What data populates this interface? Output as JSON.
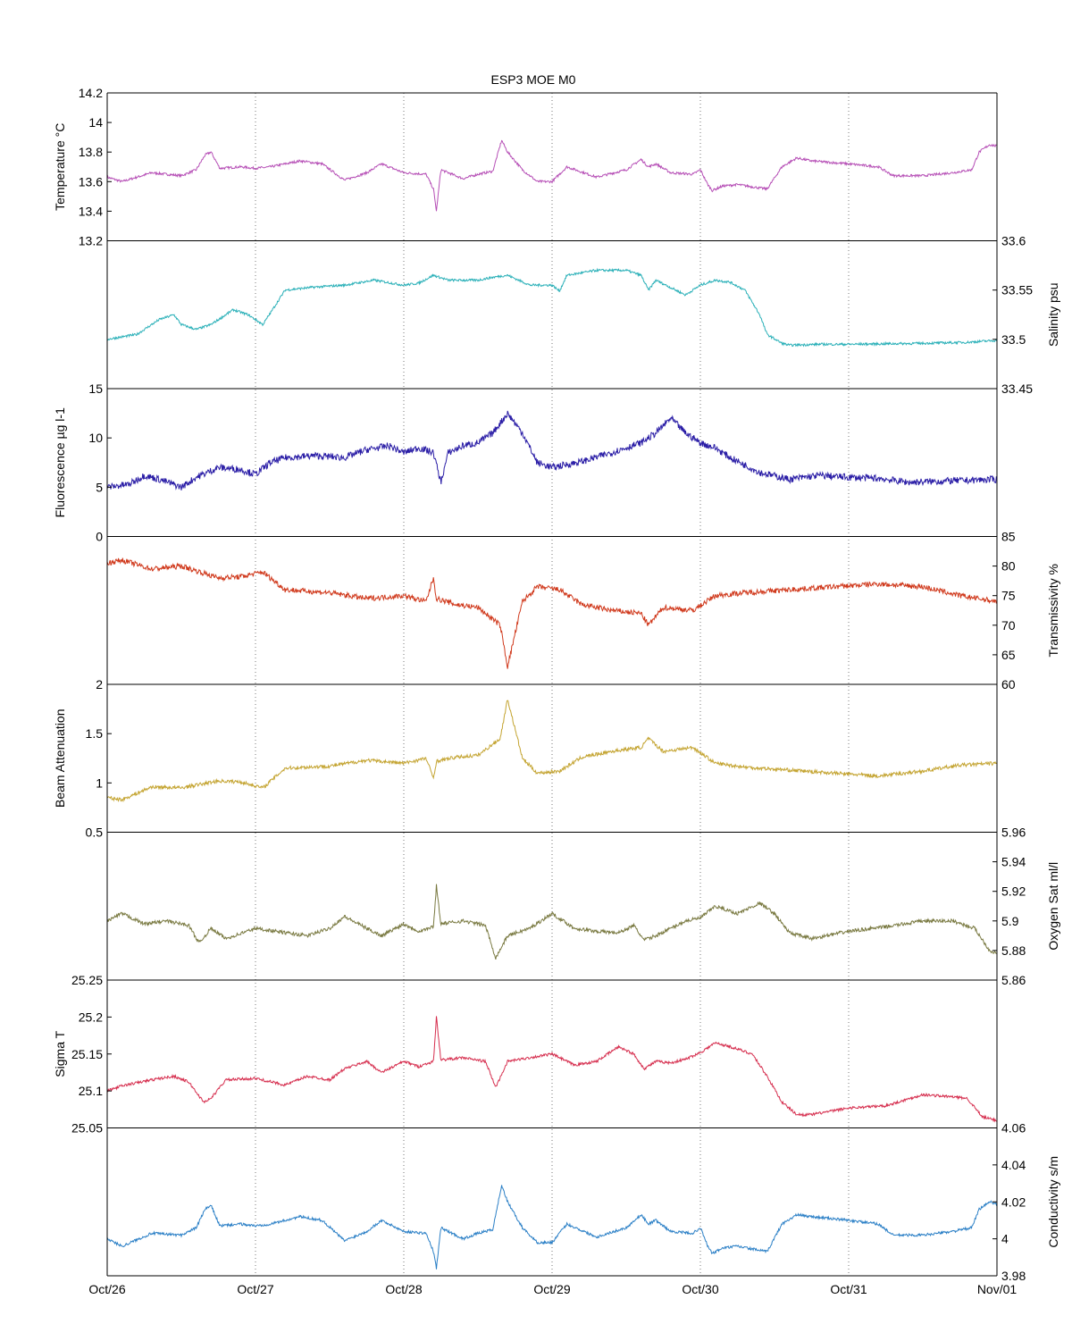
{
  "chart_data": {
    "type": "line",
    "title": "ESP3 MOE   M0",
    "x_ticks": [
      "Oct/26",
      "Oct/27",
      "Oct/28",
      "Oct/29",
      "Oct/30",
      "Oct/31",
      "Nov/01"
    ],
    "xlim_days": [
      0,
      6
    ],
    "grid": "vertical dotted at day ticks",
    "panels": [
      {
        "name": "temperature",
        "ylabel": "Temperature °C",
        "axis_side": "left",
        "color": "#b64fb6",
        "ylim": [
          13.2,
          14.2
        ],
        "yticks": [
          "13.2",
          "13.4",
          "13.6",
          "13.8",
          "14",
          "14.2"
        ],
        "ytick_values": [
          13.2,
          13.4,
          13.6,
          13.8,
          14.0,
          14.2
        ],
        "noise": 0.008,
        "x": [
          0,
          0.1,
          0.3,
          0.5,
          0.6,
          0.66,
          0.7,
          0.76,
          0.9,
          1.0,
          1.1,
          1.3,
          1.45,
          1.6,
          1.75,
          1.85,
          2.0,
          2.15,
          2.2,
          2.22,
          2.25,
          2.4,
          2.5,
          2.6,
          2.66,
          2.7,
          2.8,
          2.9,
          3.0,
          3.1,
          3.3,
          3.5,
          3.6,
          3.65,
          3.7,
          3.8,
          3.95,
          4.0,
          4.05,
          4.08,
          4.15,
          4.25,
          4.45,
          4.55,
          4.65,
          4.75,
          5.0,
          5.2,
          5.3,
          5.5,
          5.7,
          5.83,
          5.88,
          5.95,
          6.0
        ],
        "y": [
          13.63,
          13.6,
          13.66,
          13.64,
          13.68,
          13.78,
          13.8,
          13.69,
          13.7,
          13.69,
          13.7,
          13.74,
          13.72,
          13.61,
          13.66,
          13.72,
          13.66,
          13.65,
          13.55,
          13.4,
          13.68,
          13.62,
          13.65,
          13.67,
          13.88,
          13.8,
          13.68,
          13.6,
          13.6,
          13.7,
          13.63,
          13.68,
          13.75,
          13.7,
          13.72,
          13.66,
          13.65,
          13.68,
          13.58,
          13.54,
          13.57,
          13.58,
          13.55,
          13.7,
          13.76,
          13.74,
          13.72,
          13.7,
          13.64,
          13.64,
          13.66,
          13.68,
          13.8,
          13.85,
          13.84
        ]
      },
      {
        "name": "salinity",
        "ylabel": "Salinity psu",
        "axis_side": "right",
        "color": "#2ab0b8",
        "ylim": [
          33.45,
          33.6
        ],
        "yticks": [
          "33.45",
          "33.5",
          "33.55",
          "33.6"
        ],
        "ytick_values": [
          33.45,
          33.5,
          33.55,
          33.6
        ],
        "noise": 0.0012,
        "x": [
          0,
          0.2,
          0.35,
          0.45,
          0.5,
          0.6,
          0.7,
          0.85,
          0.95,
          1.05,
          1.2,
          1.4,
          1.6,
          1.8,
          2.0,
          2.1,
          2.2,
          2.3,
          2.5,
          2.6,
          2.7,
          2.85,
          3.0,
          3.05,
          3.1,
          3.3,
          3.5,
          3.6,
          3.65,
          3.7,
          3.9,
          4.0,
          4.1,
          4.2,
          4.3,
          4.4,
          4.45,
          4.55,
          4.6,
          4.8,
          5.0,
          5.5,
          5.8,
          6.0
        ],
        "y": [
          33.5,
          33.505,
          33.52,
          33.525,
          33.515,
          33.51,
          33.515,
          33.53,
          33.525,
          33.515,
          33.55,
          33.553,
          33.555,
          33.56,
          33.555,
          33.557,
          33.565,
          33.56,
          33.56,
          33.563,
          33.565,
          33.555,
          33.555,
          33.549,
          33.565,
          33.57,
          33.57,
          33.565,
          33.55,
          33.56,
          33.545,
          33.555,
          33.56,
          33.558,
          33.55,
          33.525,
          33.505,
          33.496,
          33.494,
          33.495,
          33.495,
          33.496,
          33.497,
          33.499
        ]
      },
      {
        "name": "fluorescence",
        "ylabel": "Fluorescence µg l-1",
        "axis_side": "left",
        "color": "#2a1da6",
        "ylim": [
          0,
          15
        ],
        "yticks": [
          "0",
          "5",
          "10",
          "15"
        ],
        "ytick_values": [
          0,
          5,
          10,
          15
        ],
        "noise": 0.35,
        "x": [
          0,
          0.15,
          0.25,
          0.35,
          0.5,
          0.6,
          0.75,
          0.9,
          1.0,
          1.1,
          1.2,
          1.4,
          1.6,
          1.75,
          1.9,
          2.0,
          2.1,
          2.2,
          2.25,
          2.3,
          2.4,
          2.5,
          2.6,
          2.7,
          2.8,
          2.9,
          3.0,
          3.2,
          3.4,
          3.6,
          3.7,
          3.8,
          3.9,
          4.0,
          4.1,
          4.2,
          4.4,
          4.6,
          4.8,
          5.0,
          5.2,
          5.4,
          5.6,
          5.8,
          6.0
        ],
        "y": [
          5.0,
          5.3,
          6.2,
          5.8,
          5.0,
          6.0,
          7.0,
          6.8,
          6.3,
          7.5,
          8.0,
          8.2,
          8.0,
          8.8,
          9.2,
          8.5,
          9.0,
          8.5,
          5.5,
          8.5,
          9.2,
          9.5,
          10.5,
          12.5,
          10.5,
          7.5,
          7.0,
          7.6,
          8.5,
          9.5,
          10.5,
          12.0,
          10.5,
          9.5,
          9.0,
          8.0,
          6.5,
          5.8,
          6.2,
          6.0,
          5.9,
          5.5,
          5.6,
          5.7,
          5.8
        ]
      },
      {
        "name": "transmissivity",
        "ylabel": "Transmissivity %",
        "axis_side": "right",
        "color": "#d0391c",
        "ylim": [
          60,
          85
        ],
        "yticks": [
          "60",
          "65",
          "70",
          "75",
          "80",
          "85"
        ],
        "ytick_values": [
          60,
          65,
          70,
          75,
          80,
          85
        ],
        "noise": 0.45,
        "x": [
          0,
          0.1,
          0.3,
          0.5,
          0.75,
          0.9,
          1.05,
          1.2,
          1.5,
          1.75,
          2.0,
          2.15,
          2.2,
          2.22,
          2.35,
          2.5,
          2.65,
          2.7,
          2.8,
          2.9,
          3.05,
          3.2,
          3.4,
          3.6,
          3.65,
          3.75,
          3.95,
          4.1,
          4.3,
          4.6,
          4.9,
          5.2,
          5.5,
          5.75,
          6.0
        ],
        "y": [
          80.5,
          81.0,
          79.5,
          80.0,
          78.0,
          78.2,
          79.0,
          76.0,
          75.5,
          74.5,
          75.0,
          74.0,
          78.0,
          74.5,
          73.5,
          73.0,
          70.0,
          63.0,
          74.0,
          76.5,
          76.0,
          73.5,
          72.5,
          72.0,
          70.0,
          73.0,
          72.5,
          75.0,
          75.5,
          76.0,
          76.5,
          77.0,
          76.5,
          75.0,
          74.0
        ]
      },
      {
        "name": "beam_attenuation",
        "ylabel": "Beam Attenuation",
        "axis_side": "left",
        "color": "#c4a431",
        "ylim": [
          0.5,
          2
        ],
        "yticks": [
          "0.5",
          "1",
          "1.5",
          "2"
        ],
        "ytick_values": [
          0.5,
          1.0,
          1.5,
          2.0
        ],
        "noise": 0.018,
        "x": [
          0,
          0.1,
          0.3,
          0.5,
          0.75,
          0.9,
          1.05,
          1.2,
          1.5,
          1.75,
          2.0,
          2.15,
          2.2,
          2.22,
          2.35,
          2.5,
          2.65,
          2.7,
          2.8,
          2.9,
          3.05,
          3.2,
          3.4,
          3.6,
          3.65,
          3.75,
          3.95,
          4.1,
          4.3,
          4.6,
          4.9,
          5.2,
          5.5,
          5.75,
          6.0
        ],
        "y": [
          0.85,
          0.83,
          0.96,
          0.95,
          1.02,
          1.01,
          0.95,
          1.15,
          1.17,
          1.23,
          1.2,
          1.25,
          1.05,
          1.22,
          1.26,
          1.28,
          1.45,
          1.85,
          1.25,
          1.1,
          1.12,
          1.26,
          1.32,
          1.36,
          1.45,
          1.32,
          1.36,
          1.2,
          1.16,
          1.13,
          1.1,
          1.07,
          1.12,
          1.18,
          1.2
        ]
      },
      {
        "name": "oxygen_sat",
        "ylabel": "Oxygen Sat ml/l",
        "axis_side": "right",
        "color": "#7a7a42",
        "ylim": [
          5.86,
          5.96
        ],
        "yticks": [
          "5.86",
          "5.88",
          "5.9",
          "5.92",
          "5.94",
          "5.96"
        ],
        "ytick_values": [
          5.86,
          5.88,
          5.9,
          5.92,
          5.94,
          5.96
        ],
        "noise": 0.0012,
        "x": [
          0,
          0.1,
          0.25,
          0.4,
          0.55,
          0.62,
          0.7,
          0.8,
          1.0,
          1.2,
          1.35,
          1.5,
          1.6,
          1.75,
          1.85,
          2.0,
          2.1,
          2.2,
          2.22,
          2.25,
          2.4,
          2.55,
          2.62,
          2.7,
          2.85,
          3.0,
          3.15,
          3.3,
          3.45,
          3.55,
          3.62,
          3.7,
          3.8,
          3.9,
          4.0,
          4.1,
          4.25,
          4.4,
          4.5,
          4.6,
          4.75,
          5.0,
          5.25,
          5.5,
          5.7,
          5.85,
          5.95,
          6.0
        ],
        "y": [
          5.9,
          5.905,
          5.898,
          5.9,
          5.897,
          5.885,
          5.895,
          5.888,
          5.895,
          5.892,
          5.89,
          5.895,
          5.903,
          5.895,
          5.89,
          5.898,
          5.893,
          5.896,
          5.924,
          5.898,
          5.9,
          5.897,
          5.875,
          5.89,
          5.895,
          5.905,
          5.895,
          5.893,
          5.892,
          5.897,
          5.887,
          5.89,
          5.895,
          5.9,
          5.902,
          5.91,
          5.905,
          5.912,
          5.905,
          5.892,
          5.888,
          5.893,
          5.896,
          5.9,
          5.9,
          5.895,
          5.88,
          5.878
        ]
      },
      {
        "name": "sigma_t",
        "ylabel": "Sigma T",
        "axis_side": "left",
        "color": "#d62f4f",
        "ylim": [
          25.05,
          25.25
        ],
        "yticks": [
          "25.05",
          "25.1",
          "25.15",
          "25.2",
          "25.25"
        ],
        "ytick_values": [
          25.05,
          25.1,
          25.15,
          25.2,
          25.25
        ],
        "noise": 0.0018,
        "x": [
          0,
          0.1,
          0.3,
          0.45,
          0.55,
          0.65,
          0.7,
          0.8,
          1.0,
          1.2,
          1.35,
          1.5,
          1.6,
          1.75,
          1.85,
          2.0,
          2.1,
          2.2,
          2.22,
          2.25,
          2.4,
          2.55,
          2.62,
          2.7,
          2.85,
          3.0,
          3.15,
          3.3,
          3.45,
          3.55,
          3.62,
          3.7,
          3.8,
          3.9,
          4.0,
          4.1,
          4.2,
          4.35,
          4.45,
          4.55,
          4.65,
          4.75,
          5.0,
          5.25,
          5.5,
          5.7,
          5.8,
          5.9,
          6.0
        ],
        "y": [
          25.1,
          25.107,
          25.115,
          25.12,
          25.112,
          25.085,
          25.09,
          25.115,
          25.117,
          25.108,
          25.12,
          25.115,
          25.13,
          25.14,
          25.125,
          25.14,
          25.133,
          25.14,
          25.2,
          25.142,
          25.145,
          25.14,
          25.105,
          25.14,
          25.145,
          25.15,
          25.135,
          25.14,
          25.16,
          25.15,
          25.13,
          25.14,
          25.138,
          25.143,
          25.152,
          25.165,
          25.16,
          25.15,
          25.12,
          25.085,
          25.068,
          25.068,
          25.077,
          25.08,
          25.095,
          25.092,
          25.09,
          25.065,
          25.06
        ]
      },
      {
        "name": "conductivity",
        "ylabel": "Conductivity s/m",
        "axis_side": "right",
        "color": "#2a7fc6",
        "ylim": [
          3.98,
          4.06
        ],
        "yticks": [
          "3.98",
          "4",
          "4.02",
          "4.04",
          "4.06"
        ],
        "ytick_values": [
          3.98,
          4.0,
          4.02,
          4.04,
          4.06
        ],
        "noise": 0.0007,
        "x": [
          0,
          0.1,
          0.3,
          0.5,
          0.6,
          0.66,
          0.7,
          0.76,
          0.9,
          1.0,
          1.1,
          1.3,
          1.45,
          1.6,
          1.75,
          1.85,
          2.0,
          2.15,
          2.2,
          2.22,
          2.25,
          2.4,
          2.5,
          2.6,
          2.66,
          2.7,
          2.8,
          2.9,
          3.0,
          3.1,
          3.3,
          3.5,
          3.6,
          3.65,
          3.7,
          3.8,
          3.95,
          4.0,
          4.05,
          4.08,
          4.15,
          4.25,
          4.45,
          4.55,
          4.65,
          4.75,
          5.0,
          5.2,
          5.3,
          5.5,
          5.7,
          5.83,
          5.88,
          5.95,
          6.0
        ],
        "y": [
          4.0,
          3.996,
          4.003,
          4.002,
          4.006,
          4.016,
          4.018,
          4.007,
          4.008,
          4.007,
          4.008,
          4.012,
          4.01,
          3.999,
          4.004,
          4.01,
          4.004,
          4.003,
          3.993,
          3.984,
          4.006,
          4.0,
          4.003,
          4.005,
          4.029,
          4.02,
          4.006,
          3.998,
          3.998,
          4.008,
          4.001,
          4.006,
          4.013,
          4.008,
          4.01,
          4.004,
          4.003,
          4.006,
          3.996,
          3.992,
          3.995,
          3.996,
          3.993,
          4.008,
          4.013,
          4.012,
          4.01,
          4.008,
          4.002,
          4.002,
          4.004,
          4.006,
          4.016,
          4.02,
          4.019
        ]
      }
    ]
  }
}
